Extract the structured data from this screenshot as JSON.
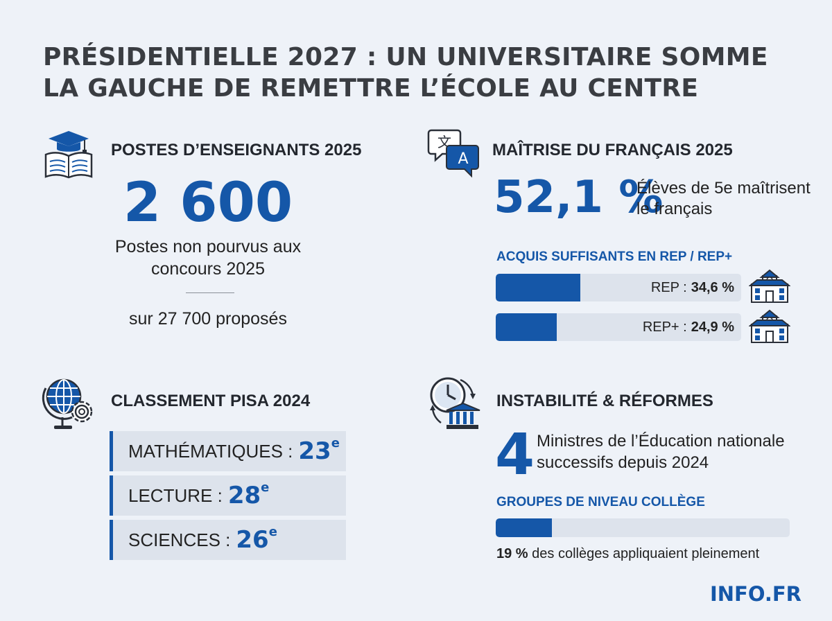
{
  "title": "PRÉSIDENTIELLE 2027 : UN UNIVERSITAIRE SOMME LA GAUCHE DE REMETTRE L’ÉCOLE AU CENTRE",
  "posts": {
    "heading": "POSTES D’ENSEIGNANTS 2025",
    "icon": "book-graduation-cap-icon",
    "number": "2 600",
    "label": "Postes non pourvus aux concours 2025",
    "sub": "sur 27 700 proposés"
  },
  "french": {
    "heading": "MAÎTRISE DU FRANÇAIS 2025",
    "icon": "translate-chat-icon",
    "percent": "52,1 %",
    "label": "Élèves de 5e maîtrisent le français",
    "sub_heading": "ACQUIS SUFFISANTS EN REP / REP+",
    "bars": [
      {
        "name": "REP :",
        "value_text": "34,6 %",
        "value": 34.6,
        "icon": "school-building-icon"
      },
      {
        "name": "REP+ :",
        "value_text": "24,9 %",
        "value": 24.9,
        "icon": "school-building-icon"
      }
    ]
  },
  "pisa": {
    "heading": "CLASSEMENT PISA 2024",
    "icon": "globe-gear-icon",
    "rows": [
      {
        "subject": "MATHÉMATIQUES :",
        "rank": "23",
        "suffix": "e"
      },
      {
        "subject": "LECTURE :",
        "rank": "28",
        "suffix": "e"
      },
      {
        "subject": "SCIENCES :",
        "rank": "26",
        "suffix": "e"
      }
    ]
  },
  "reforms": {
    "heading": "INSTABILITÉ & RÉFORMES",
    "icon": "clock-institution-icon",
    "number": "4",
    "label": "Ministres de l’Éducation nationale successifs depuis 2024",
    "sub_heading": "GROUPES DE NIVEAU COLLÈGE",
    "bar_value": 19,
    "bar_text_bold": "19 %",
    "bar_text": "des collèges appliquaient pleinement"
  },
  "brand": "INFO.FR",
  "colors": {
    "accent": "#1557a8",
    "track": "#dde3ec",
    "background": "#eef2f8"
  }
}
